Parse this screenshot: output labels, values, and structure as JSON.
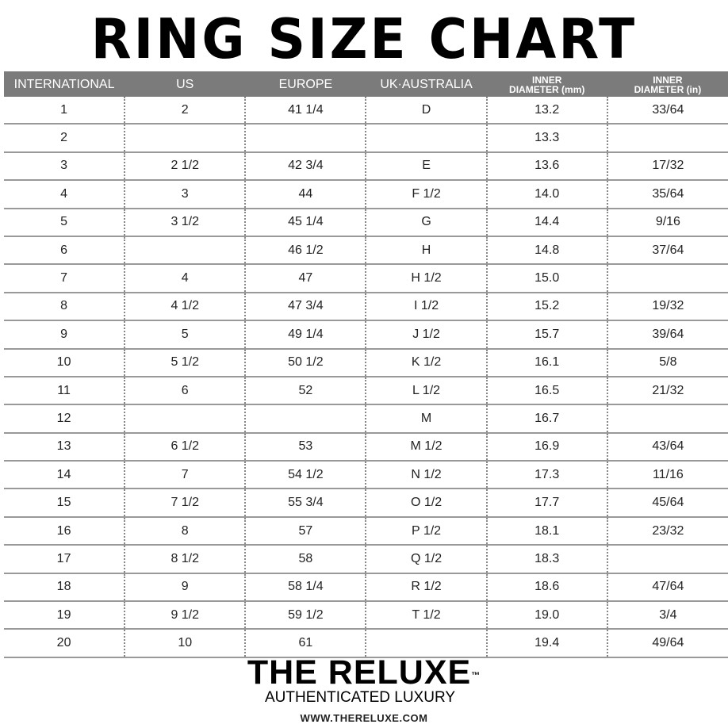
{
  "title": "RING SIZE CHART",
  "headers": [
    "INTERNATIONAL",
    "US",
    "EUROPE",
    "UK·AUSTRALIA",
    "INNER\nDIAMETER (mm)",
    "INNER\nDIAMETER (in)"
  ],
  "rows": [
    [
      "1",
      "2",
      "41 1/4",
      "D",
      "13.2",
      "33/64"
    ],
    [
      "2",
      "",
      "",
      "",
      "13.3",
      ""
    ],
    [
      "3",
      "2 1/2",
      "42 3/4",
      "E",
      "13.6",
      "17/32"
    ],
    [
      "4",
      "3",
      "44",
      "F 1/2",
      "14.0",
      "35/64"
    ],
    [
      "5",
      "3 1/2",
      "45 1/4",
      "G",
      "14.4",
      "9/16"
    ],
    [
      "6",
      "",
      "46 1/2",
      "H",
      "14.8",
      "37/64"
    ],
    [
      "7",
      "4",
      "47",
      "H 1/2",
      "15.0",
      ""
    ],
    [
      "8",
      "4 1/2",
      "47 3/4",
      "I 1/2",
      "15.2",
      "19/32"
    ],
    [
      "9",
      "5",
      "49 1/4",
      "J 1/2",
      "15.7",
      "39/64"
    ],
    [
      "10",
      "5 1/2",
      "50 1/2",
      "K 1/2",
      "16.1",
      "5/8"
    ],
    [
      "11",
      "6",
      "52",
      "L 1/2",
      "16.5",
      "21/32"
    ],
    [
      "12",
      "",
      "",
      "M",
      "16.7",
      ""
    ],
    [
      "13",
      "6 1/2",
      "53",
      "M 1/2",
      "16.9",
      "43/64"
    ],
    [
      "14",
      "7",
      "54 1/2",
      "N 1/2",
      "17.3",
      "11/16"
    ],
    [
      "15",
      "7 1/2",
      "55 3/4",
      "O 1/2",
      "17.7",
      "45/64"
    ],
    [
      "16",
      "8",
      "57",
      "P 1/2",
      "18.1",
      "23/32"
    ],
    [
      "17",
      "8 1/2",
      "58",
      "Q 1/2",
      "18.3",
      ""
    ],
    [
      "18",
      "9",
      "58 1/4",
      "R 1/2",
      "18.6",
      "47/64"
    ],
    [
      "19",
      "9 1/2",
      "59 1/2",
      "T 1/2",
      "19.0",
      "3/4"
    ],
    [
      "20",
      "10",
      "61",
      "",
      "19.4",
      "49/64"
    ]
  ],
  "brand": {
    "name": "THE RELUXE",
    "tm": "™",
    "tagline": "AUTHENTICATED LUXURY",
    "url": "WWW.THERELUXE.COM"
  },
  "colors": {
    "header_bg": "#7b7b7b",
    "header_text": "#ffffff"
  }
}
